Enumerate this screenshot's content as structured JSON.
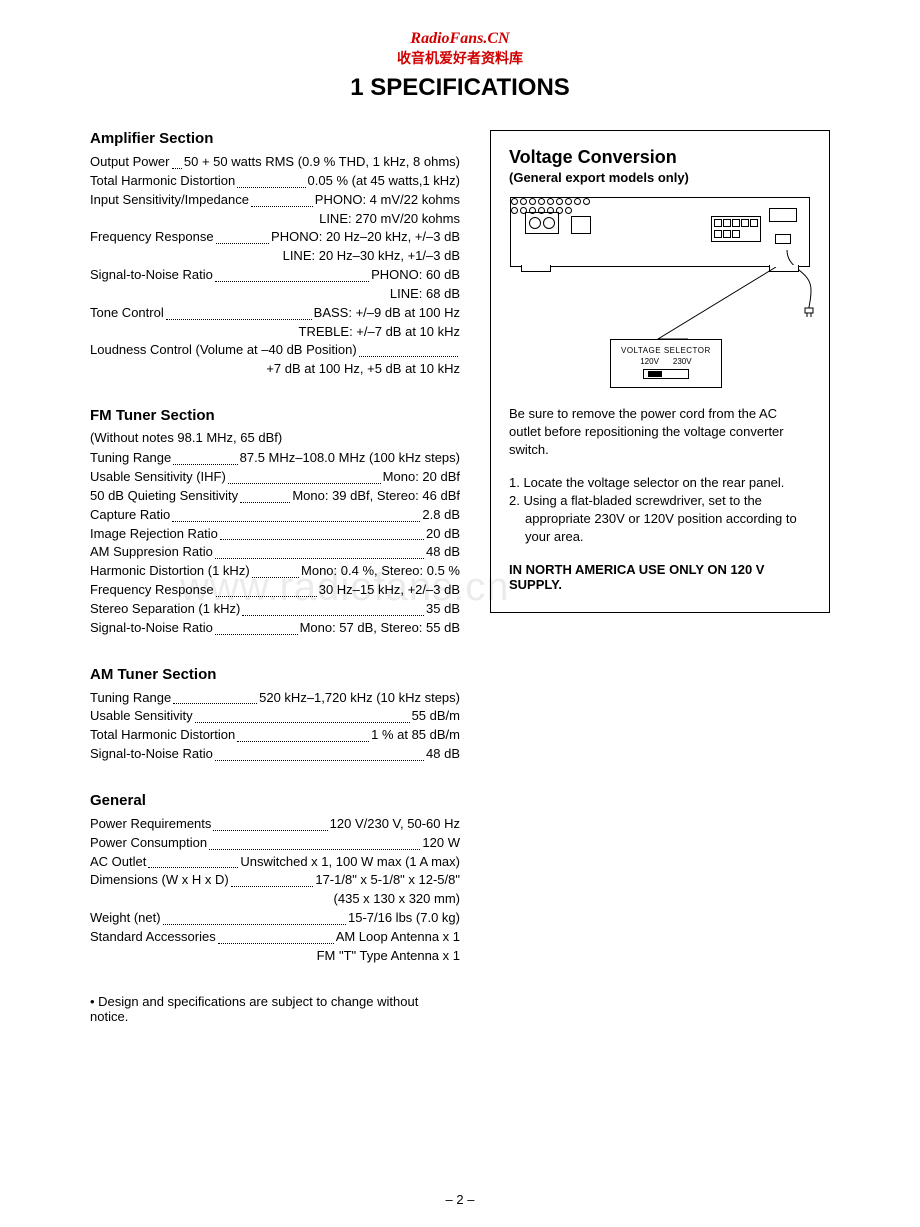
{
  "header": {
    "site": "RadioFans.CN",
    "subtitle": "收音机爱好者资料库",
    "title": "1  SPECIFICATIONS"
  },
  "watermark": "www.radiofans.cn",
  "page_number": "– 2 –",
  "amplifier": {
    "title": "Amplifier Section",
    "rows": [
      {
        "label": "Output Power",
        "value": "50 + 50 watts RMS (0.9 % THD, 1 kHz, 8 ohms)"
      },
      {
        "label": "Total Harmonic Distortion",
        "value": "0.05 % (at 45 watts,1 kHz)"
      },
      {
        "label": "Input Sensitivity/Impedance",
        "value": "PHONO: 4 mV/22 kohms"
      },
      {
        "cont": "LINE: 270 mV/20 kohms"
      },
      {
        "label": "Frequency Response",
        "value": "PHONO: 20 Hz–20 kHz, +/–3 dB"
      },
      {
        "cont": "LINE: 20 Hz–30 kHz, +1/–3 dB"
      },
      {
        "label": "Signal-to-Noise Ratio",
        "value": "PHONO: 60 dB"
      },
      {
        "cont": "LINE: 68 dB"
      },
      {
        "label": "Tone Control",
        "value": "BASS: +/–9 dB at 100 Hz"
      },
      {
        "cont": "TREBLE: +/–7 dB at 10 kHz"
      },
      {
        "label": "Loudness Control (Volume at –40 dB Position)",
        "value": ""
      },
      {
        "cont": "+7 dB at 100 Hz, +5 dB at 10 kHz"
      }
    ]
  },
  "fm": {
    "title": "FM Tuner Section",
    "note": "(Without notes 98.1 MHz, 65 dBf)",
    "rows": [
      {
        "label": "Tuning Range",
        "value": "87.5 MHz–108.0 MHz (100 kHz steps)"
      },
      {
        "label": "Usable Sensitivity (IHF)",
        "value": "Mono: 20 dBf"
      },
      {
        "label": "50 dB Quieting Sensitivity",
        "value": "Mono: 39 dBf, Stereo: 46 dBf"
      },
      {
        "label": "Capture Ratio",
        "value": "2.8 dB"
      },
      {
        "label": "Image Rejection Ratio",
        "value": "20 dB"
      },
      {
        "label": "AM Suppresion Ratio",
        "value": "48 dB"
      },
      {
        "label": "Harmonic Distortion (1 kHz)",
        "value": "Mono: 0.4 %, Stereo: 0.5 %"
      },
      {
        "label": "Frequency Response",
        "value": "30 Hz–15 kHz, +2/–3 dB"
      },
      {
        "label": "Stereo Separation (1 kHz)",
        "value": "35 dB"
      },
      {
        "label": "Signal-to-Noise Ratio",
        "value": "Mono: 57 dB, Stereo: 55 dB"
      }
    ]
  },
  "am": {
    "title": "AM Tuner Section",
    "rows": [
      {
        "label": "Tuning Range",
        "value": "520 kHz–1,720 kHz (10 kHz steps)"
      },
      {
        "label": "Usable Sensitivity",
        "value": "55 dB/m"
      },
      {
        "label": "Total Harmonic Distortion",
        "value": "1 % at 85 dB/m"
      },
      {
        "label": "Signal-to-Noise Ratio",
        "value": "48 dB"
      }
    ]
  },
  "general": {
    "title": "General",
    "rows": [
      {
        "label": "Power Requirements",
        "value": "120 V/230 V, 50-60 Hz"
      },
      {
        "label": "Power Consumption",
        "value": "120 W"
      },
      {
        "label": "AC Outlet",
        "value": "Unswitched x 1, 100 W max (1 A max)"
      },
      {
        "label": "Dimensions (W x H x D)",
        "value": "17-1/8\" x 5-1/8\" x 12-5/8\""
      },
      {
        "cont": "(435 x 130 x 320 mm)"
      },
      {
        "label": "Weight (net)",
        "value": "15-7/16 lbs (7.0 kg)"
      },
      {
        "label": "Standard Accessories",
        "value": "AM Loop Antenna x 1"
      },
      {
        "cont": "FM \"T\" Type Antenna x 1"
      }
    ]
  },
  "footnote": "• Design and specifications are subject to change without notice.",
  "voltage": {
    "title": "Voltage Conversion",
    "subtitle": "(General export models only)",
    "selector_label": "VOLTAGE SELECTOR",
    "v1": "120V",
    "v2": "230V",
    "text": "Be sure to remove the power cord from the AC outlet before repositioning the voltage converter switch.",
    "step1": "1. Locate the voltage selector on the rear panel.",
    "step2": "2. Using a flat-bladed screwdriver, set to the appropriate 230V or 120V position according to your area.",
    "warn": "IN NORTH AMERICA USE ONLY ON 120 V SUPPLY."
  }
}
